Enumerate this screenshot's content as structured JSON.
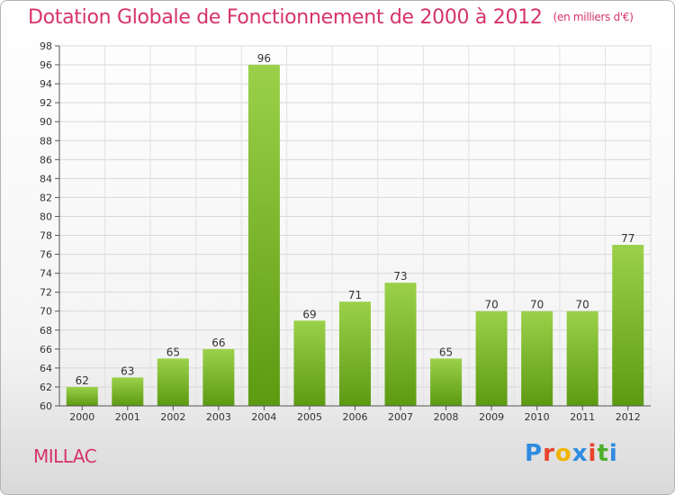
{
  "header": {
    "title": "Dotation Globale de Fonctionnement de 2000 à 2012",
    "unit": "(en milliers d'€)"
  },
  "footer": {
    "town": "MILLAC",
    "logo_letters": [
      "P",
      "r",
      "o",
      "x",
      "i",
      "t",
      "i"
    ]
  },
  "colors": {
    "title": "#d6336c",
    "bar_top": "#9bd14a",
    "bar_bottom": "#5c9a12",
    "logo": [
      "#2e8be0",
      "#e8432c",
      "#f0b400",
      "#2e8be0",
      "#e8432c",
      "#4caf2a",
      "#2e8be0"
    ]
  },
  "chart_data": {
    "type": "bar",
    "title": "Dotation Globale de Fonctionnement de 2000 à 2012",
    "subtitle": "(en milliers d'€)",
    "categories": [
      "2000",
      "2001",
      "2002",
      "2003",
      "2004",
      "2005",
      "2006",
      "2007",
      "2008",
      "2009",
      "2010",
      "2011",
      "2012"
    ],
    "values": [
      62,
      63,
      65,
      66,
      96,
      69,
      71,
      73,
      65,
      70,
      70,
      70,
      77
    ],
    "ylim": [
      60,
      98
    ],
    "ytick_step": 2,
    "grid": true,
    "data_labels": true
  }
}
